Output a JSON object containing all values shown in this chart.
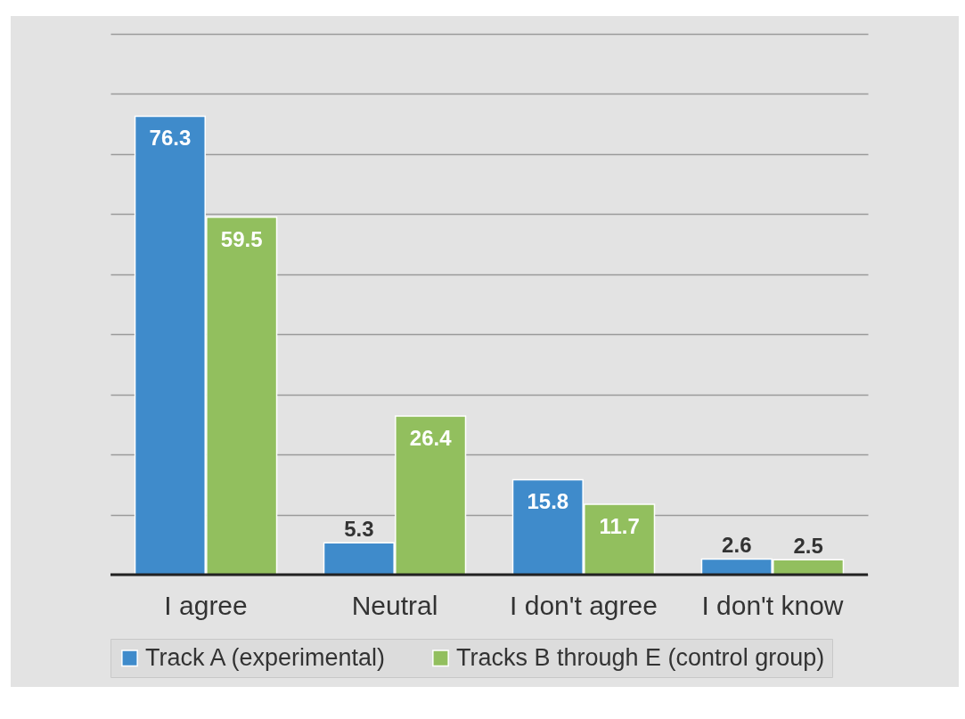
{
  "chart_data": {
    "type": "bar",
    "categories": [
      "I agree",
      "Neutral",
      "I don't agree",
      "I don't know"
    ],
    "series": [
      {
        "name": "Track A (experimental)",
        "color": "#3f8bcb",
        "values": [
          76.3,
          5.3,
          15.8,
          2.6
        ]
      },
      {
        "name": "Tracks B through E (control group)",
        "color": "#92bf5e",
        "values": [
          59.5,
          26.4,
          11.7,
          2.5
        ]
      }
    ],
    "ylim": [
      0,
      90
    ],
    "yticks": [
      {
        "value": 0,
        "label": null
      },
      {
        "value": 10,
        "label": null
      },
      {
        "value": 20,
        "label": null
      },
      {
        "value": 30,
        "label": null
      },
      {
        "value": 40,
        "label": null
      },
      {
        "value": 50,
        "label": null
      },
      {
        "value": 60,
        "label": null
      },
      {
        "value": 70,
        "label": null
      },
      {
        "value": 80,
        "label": null
      },
      {
        "value": 90,
        "label": null
      }
    ],
    "grid": "y",
    "data_labels": true,
    "legend": "bottom",
    "tick_labels": "x"
  }
}
